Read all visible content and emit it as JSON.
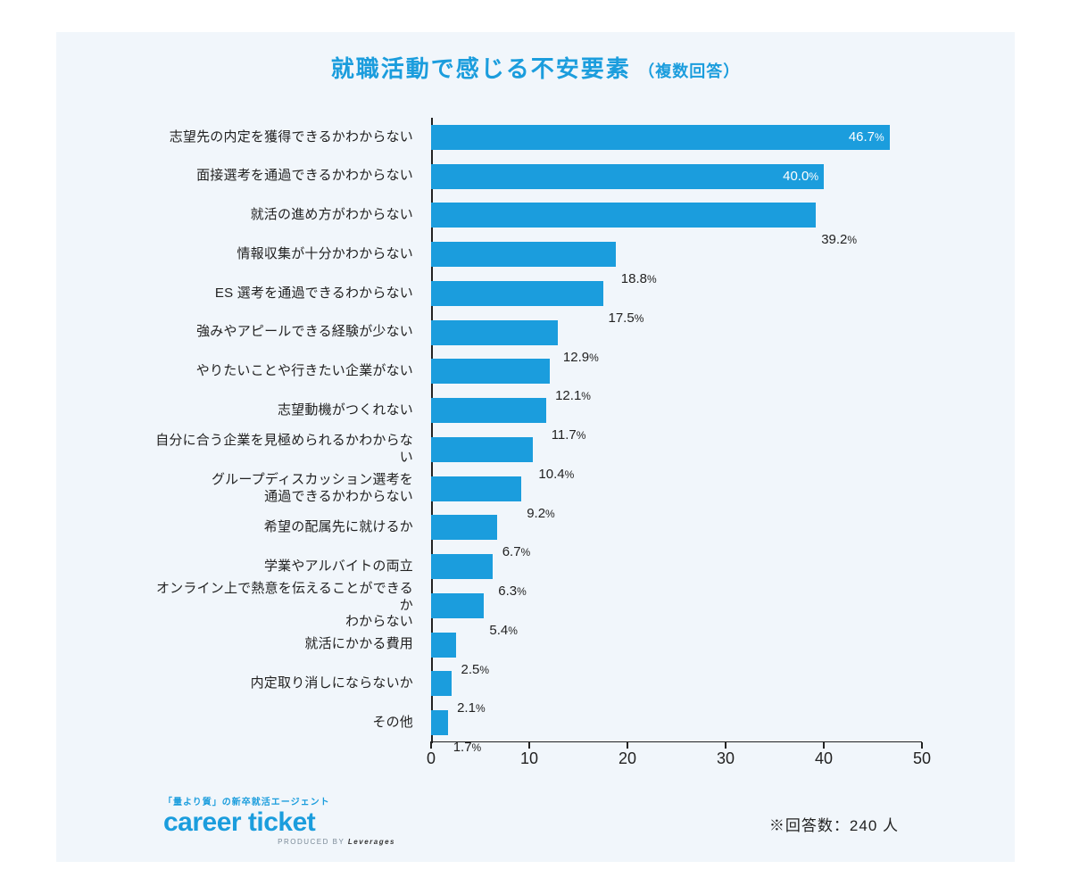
{
  "title": "就職活動で感じる不安要素",
  "subtitle": "（複数回答）",
  "note": "※回答数：240 人",
  "chart": {
    "type": "bar",
    "x_max": 50,
    "x_ticks": [
      0,
      10,
      20,
      30,
      40,
      50
    ],
    "bar_color": "#1b9ddd",
    "background": "#f1f6fb",
    "axis_color": "#222222",
    "label_fontsize": 15,
    "tick_fontsize": 18,
    "value_suffix": "%",
    "rows": [
      {
        "label": "志望先の内定を獲得できるかわからない",
        "value": 46.7,
        "label_inside": true
      },
      {
        "label": "面接選考を通過できるかわからない",
        "value": 40.0,
        "label_inside": true
      },
      {
        "label": "就活の進め方がわからない",
        "value": 39.2,
        "label_inside": false
      },
      {
        "label": "情報収集が十分かわからない",
        "value": 18.8,
        "label_inside": false
      },
      {
        "label": "ES 選考を通過できるわからない",
        "value": 17.5,
        "label_inside": false
      },
      {
        "label": "強みやアピールできる経験が少ない",
        "value": 12.9,
        "label_inside": false
      },
      {
        "label": "やりたいことや行きたい企業がない",
        "value": 12.1,
        "label_inside": false
      },
      {
        "label": "志望動機がつくれない",
        "value": 11.7,
        "label_inside": false
      },
      {
        "label": "自分に合う企業を見極められるかわからない",
        "value": 10.4,
        "label_inside": false
      },
      {
        "label": "グループディスカッション選考を\n通過できるかわからない",
        "value": 9.2,
        "label_inside": false
      },
      {
        "label": "希望の配属先に就けるか",
        "value": 6.7,
        "label_inside": false
      },
      {
        "label": "学業やアルバイトの両立",
        "value": 6.3,
        "label_inside": false
      },
      {
        "label": "オンライン上で熱意を伝えることができるか\nわからない",
        "value": 5.4,
        "label_inside": false
      },
      {
        "label": "就活にかかる費用",
        "value": 2.5,
        "label_inside": false
      },
      {
        "label": "内定取り消しにならないか",
        "value": 2.1,
        "label_inside": false
      },
      {
        "label": "その他",
        "value": 1.7,
        "label_inside": false
      }
    ]
  },
  "logo": {
    "tagline": "「量より質」の新卒就活エージェント",
    "brand": "career ticket",
    "producer_label": "PRODUCED BY",
    "producer": "Leverages"
  }
}
